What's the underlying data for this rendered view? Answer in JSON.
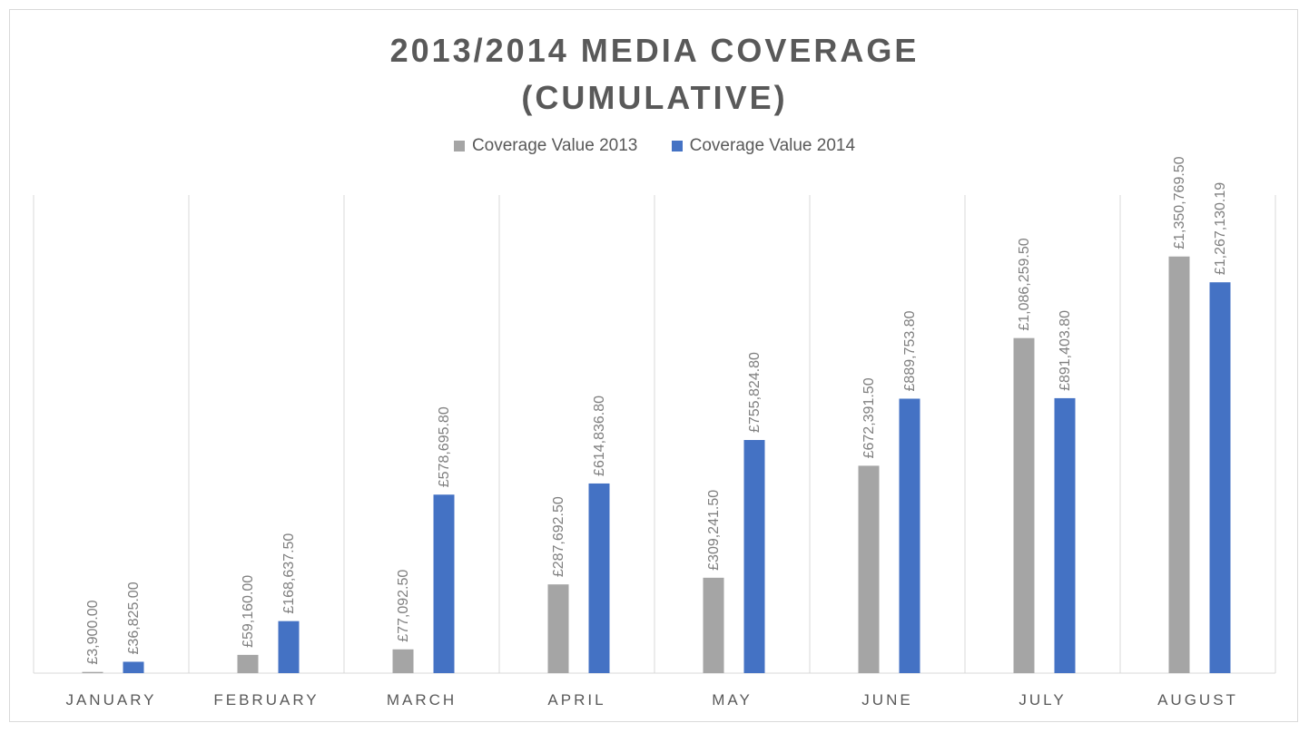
{
  "chart_data": {
    "type": "bar",
    "title": "2013/2014 MEDIA COVERAGE\n(CUMULATIVE)",
    "xlabel": "",
    "ylabel": "",
    "ylim": [
      0,
      1550000
    ],
    "grid": "vertical category separators",
    "legend_placement": "top-center",
    "categories": [
      "JANUARY",
      "FEBRUARY",
      "MARCH",
      "APRIL",
      "MAY",
      "JUNE",
      "JULY",
      "AUGUST"
    ],
    "series": [
      {
        "name": "Coverage Value 2013",
        "color": "#a5a5a5",
        "values": [
          3900.0,
          59160.0,
          77092.5,
          287692.5,
          309241.5,
          672391.5,
          1086259.5,
          1350769.5
        ],
        "labels": [
          "£3,900.00",
          "£59,160.00",
          "£77,092.50",
          "£287,692.50",
          "£309,241.50",
          "£672,391.50",
          "£1,086,259.50",
          "£1,350,769.50"
        ]
      },
      {
        "name": "Coverage Value 2014",
        "color": "#4472c4",
        "values": [
          36825.0,
          168637.5,
          578695.8,
          614836.8,
          755824.8,
          889753.8,
          891403.8,
          1267130.19
        ],
        "labels": [
          "£36,825.00",
          "£168,637.50",
          "£578,695.80",
          "£614,836.80",
          "£755,824.80",
          "£889,753.80",
          "£891,403.80",
          "£1,267,130.19"
        ]
      }
    ]
  }
}
